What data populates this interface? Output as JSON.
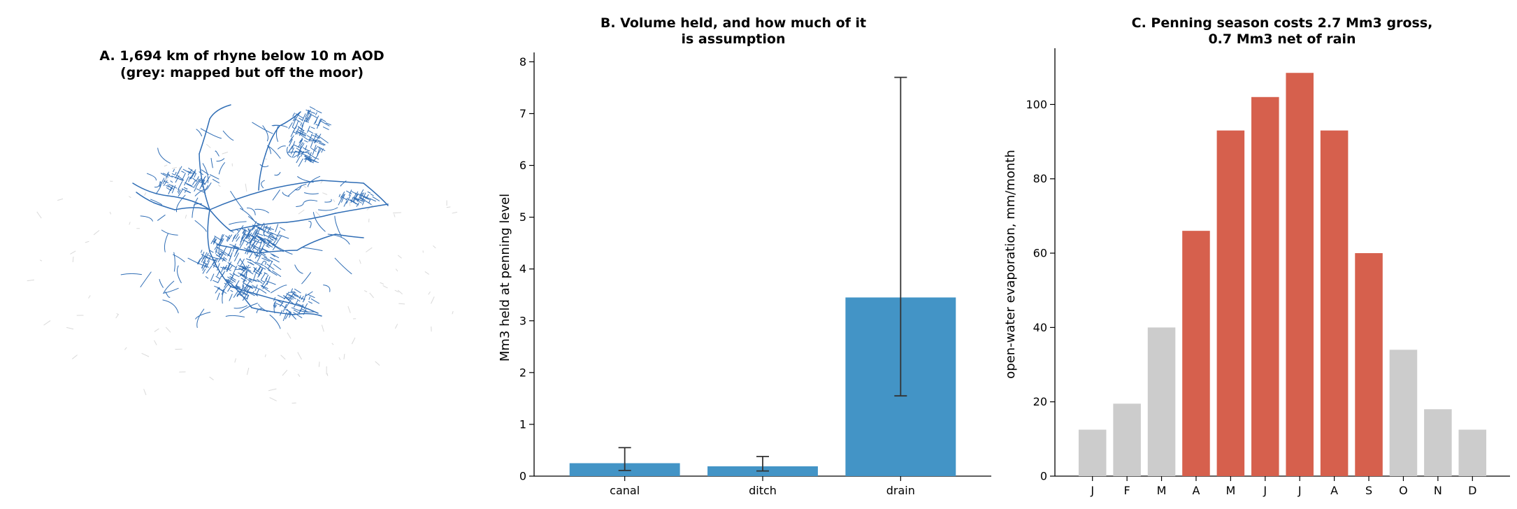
{
  "colors": {
    "network": "#2f6db5",
    "network_grey": "#d9d9d9",
    "bar_blue": "#4394c6",
    "bar_red": "#d6604d",
    "bar_grey": "#cccccc",
    "error": "#333333",
    "axis": "#000000"
  },
  "panel_a": {
    "title_line1": "A. 1,694 km of rhyne below 10 m AOD",
    "title_line2": "(grey: mapped but off the moor)"
  },
  "chart_data": [
    {
      "type": "bar",
      "title_line1": "B. Volume held, and how much of it",
      "title_line2": "is assumption",
      "ylabel": "Mm3 held at penning level",
      "categories": [
        "canal",
        "ditch",
        "drain"
      ],
      "values": [
        0.25,
        0.19,
        3.45
      ],
      "error_low": [
        0.11,
        0.1,
        1.55
      ],
      "error_high": [
        0.55,
        0.38,
        7.7
      ],
      "ylim": [
        0,
        8.1
      ],
      "yticks": [
        0,
        1,
        2,
        3,
        4,
        5,
        6,
        7,
        8
      ]
    },
    {
      "type": "bar",
      "title_line1": "C. Penning season costs 2.7 Mm3 gross,",
      "title_line2": "0.7 Mm3 net of rain",
      "ylabel": "open-water evaporation, mm/month",
      "categories": [
        "J",
        "F",
        "M",
        "A",
        "M",
        "J",
        "J",
        "A",
        "S",
        "O",
        "N",
        "D"
      ],
      "values": [
        12.5,
        19.5,
        40,
        66,
        93,
        102,
        108.5,
        93,
        60,
        34,
        18,
        12.5
      ],
      "penning": [
        false,
        false,
        false,
        true,
        true,
        true,
        true,
        true,
        true,
        false,
        false,
        false
      ],
      "ylim": [
        0,
        114
      ],
      "yticks": [
        0,
        20,
        40,
        60,
        80,
        100
      ]
    }
  ]
}
